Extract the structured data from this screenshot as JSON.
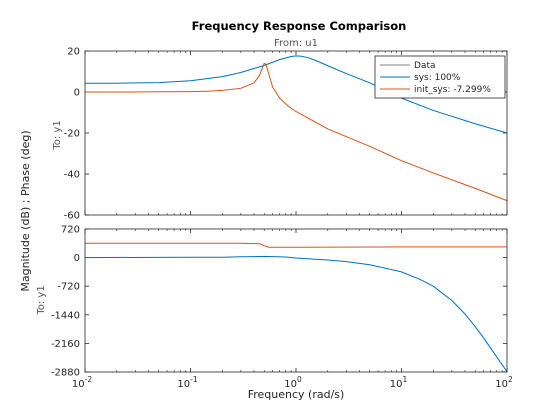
{
  "chart_data": {
    "type": "line",
    "title": "Frequency Response Comparison",
    "input_label": "From: u1",
    "output_label": "To: y1",
    "ylabel": "Magnitude (dB) ; Phase (deg)",
    "xlabel": "Frequency  (rad/s)",
    "xscale": "log",
    "xlim": [
      0.01,
      100
    ],
    "xticks": [
      {
        "value": 0.01,
        "base": "10",
        "exp": "-2"
      },
      {
        "value": 0.1,
        "base": "10",
        "exp": "-1"
      },
      {
        "value": 1,
        "base": "10",
        "exp": "0"
      },
      {
        "value": 10,
        "base": "10",
        "exp": "1"
      },
      {
        "value": 100,
        "base": "10",
        "exp": "2"
      }
    ],
    "legend": {
      "position": "top-right",
      "entries": [
        {
          "label": "Data",
          "color": "#808080"
        },
        {
          "label": "sys: 100%",
          "color": "#0072bd"
        },
        {
          "label": "init_sys: -7.299%",
          "color": "#d95319"
        }
      ]
    },
    "panels": [
      {
        "name": "magnitude",
        "ylim": [
          -60,
          20
        ],
        "yticks": [
          "20",
          "0",
          "-20",
          "-40",
          "-60"
        ],
        "series": [
          {
            "name": "sys: 100%",
            "color": "#0072bd",
            "x": [
              0.01,
              0.02,
              0.05,
              0.1,
              0.2,
              0.3,
              0.5,
              0.7,
              0.9,
              1.0,
              1.1,
              1.3,
              1.6,
              2,
              3,
              5,
              10,
              20,
              50,
              100
            ],
            "y": [
              4.3,
              4.3,
              4.6,
              5.5,
              7.5,
              9.5,
              13,
              15.8,
              17.3,
              17.6,
              17.5,
              16.8,
              15,
              12.8,
              9,
              4.5,
              -3,
              -9,
              -15.5,
              -20
            ]
          },
          {
            "name": "init_sys: -7.299%",
            "color": "#d95319",
            "x": [
              0.01,
              0.02,
              0.05,
              0.1,
              0.15,
              0.2,
              0.3,
              0.4,
              0.45,
              0.5,
              0.52,
              0.55,
              0.6,
              0.7,
              0.85,
              1.0,
              1.5,
              2,
              5,
              10,
              20,
              50,
              100
            ],
            "y": [
              0,
              0,
              0.1,
              0.2,
              0.4,
              0.8,
              1.8,
              4.5,
              8,
              14,
              13.5,
              9,
              2.5,
              -3,
              -7,
              -9.5,
              -14.5,
              -18,
              -26.5,
              -33.5,
              -39.5,
              -47,
              -53
            ]
          }
        ]
      },
      {
        "name": "phase",
        "ylim": [
          -2880,
          720
        ],
        "yticks": [
          "720",
          "0",
          "-720",
          "-1440",
          "-2160",
          "-2880"
        ],
        "series": [
          {
            "name": "sys: 100%",
            "color": "#0072bd",
            "x": [
              0.01,
              0.1,
              0.2,
              0.3,
              0.5,
              0.8,
              1,
              2,
              3,
              5,
              10,
              15,
              20,
              30,
              40,
              50,
              60,
              70,
              80,
              90,
              100
            ],
            "y": [
              0,
              10,
              10,
              20,
              30,
              15,
              -10,
              -60,
              -100,
              -180,
              -360,
              -550,
              -720,
              -1080,
              -1420,
              -1740,
              -2020,
              -2280,
              -2500,
              -2700,
              -2870
            ]
          },
          {
            "name": "init_sys: -7.299%",
            "color": "#d95319",
            "x": [
              0.01,
              0.1,
              0.3,
              0.45,
              0.5,
              0.55,
              0.6,
              1,
              10,
              100
            ],
            "y": [
              360,
              360,
              360,
              350,
              300,
              260,
              260,
              260,
              270,
              270
            ]
          }
        ]
      }
    ]
  }
}
